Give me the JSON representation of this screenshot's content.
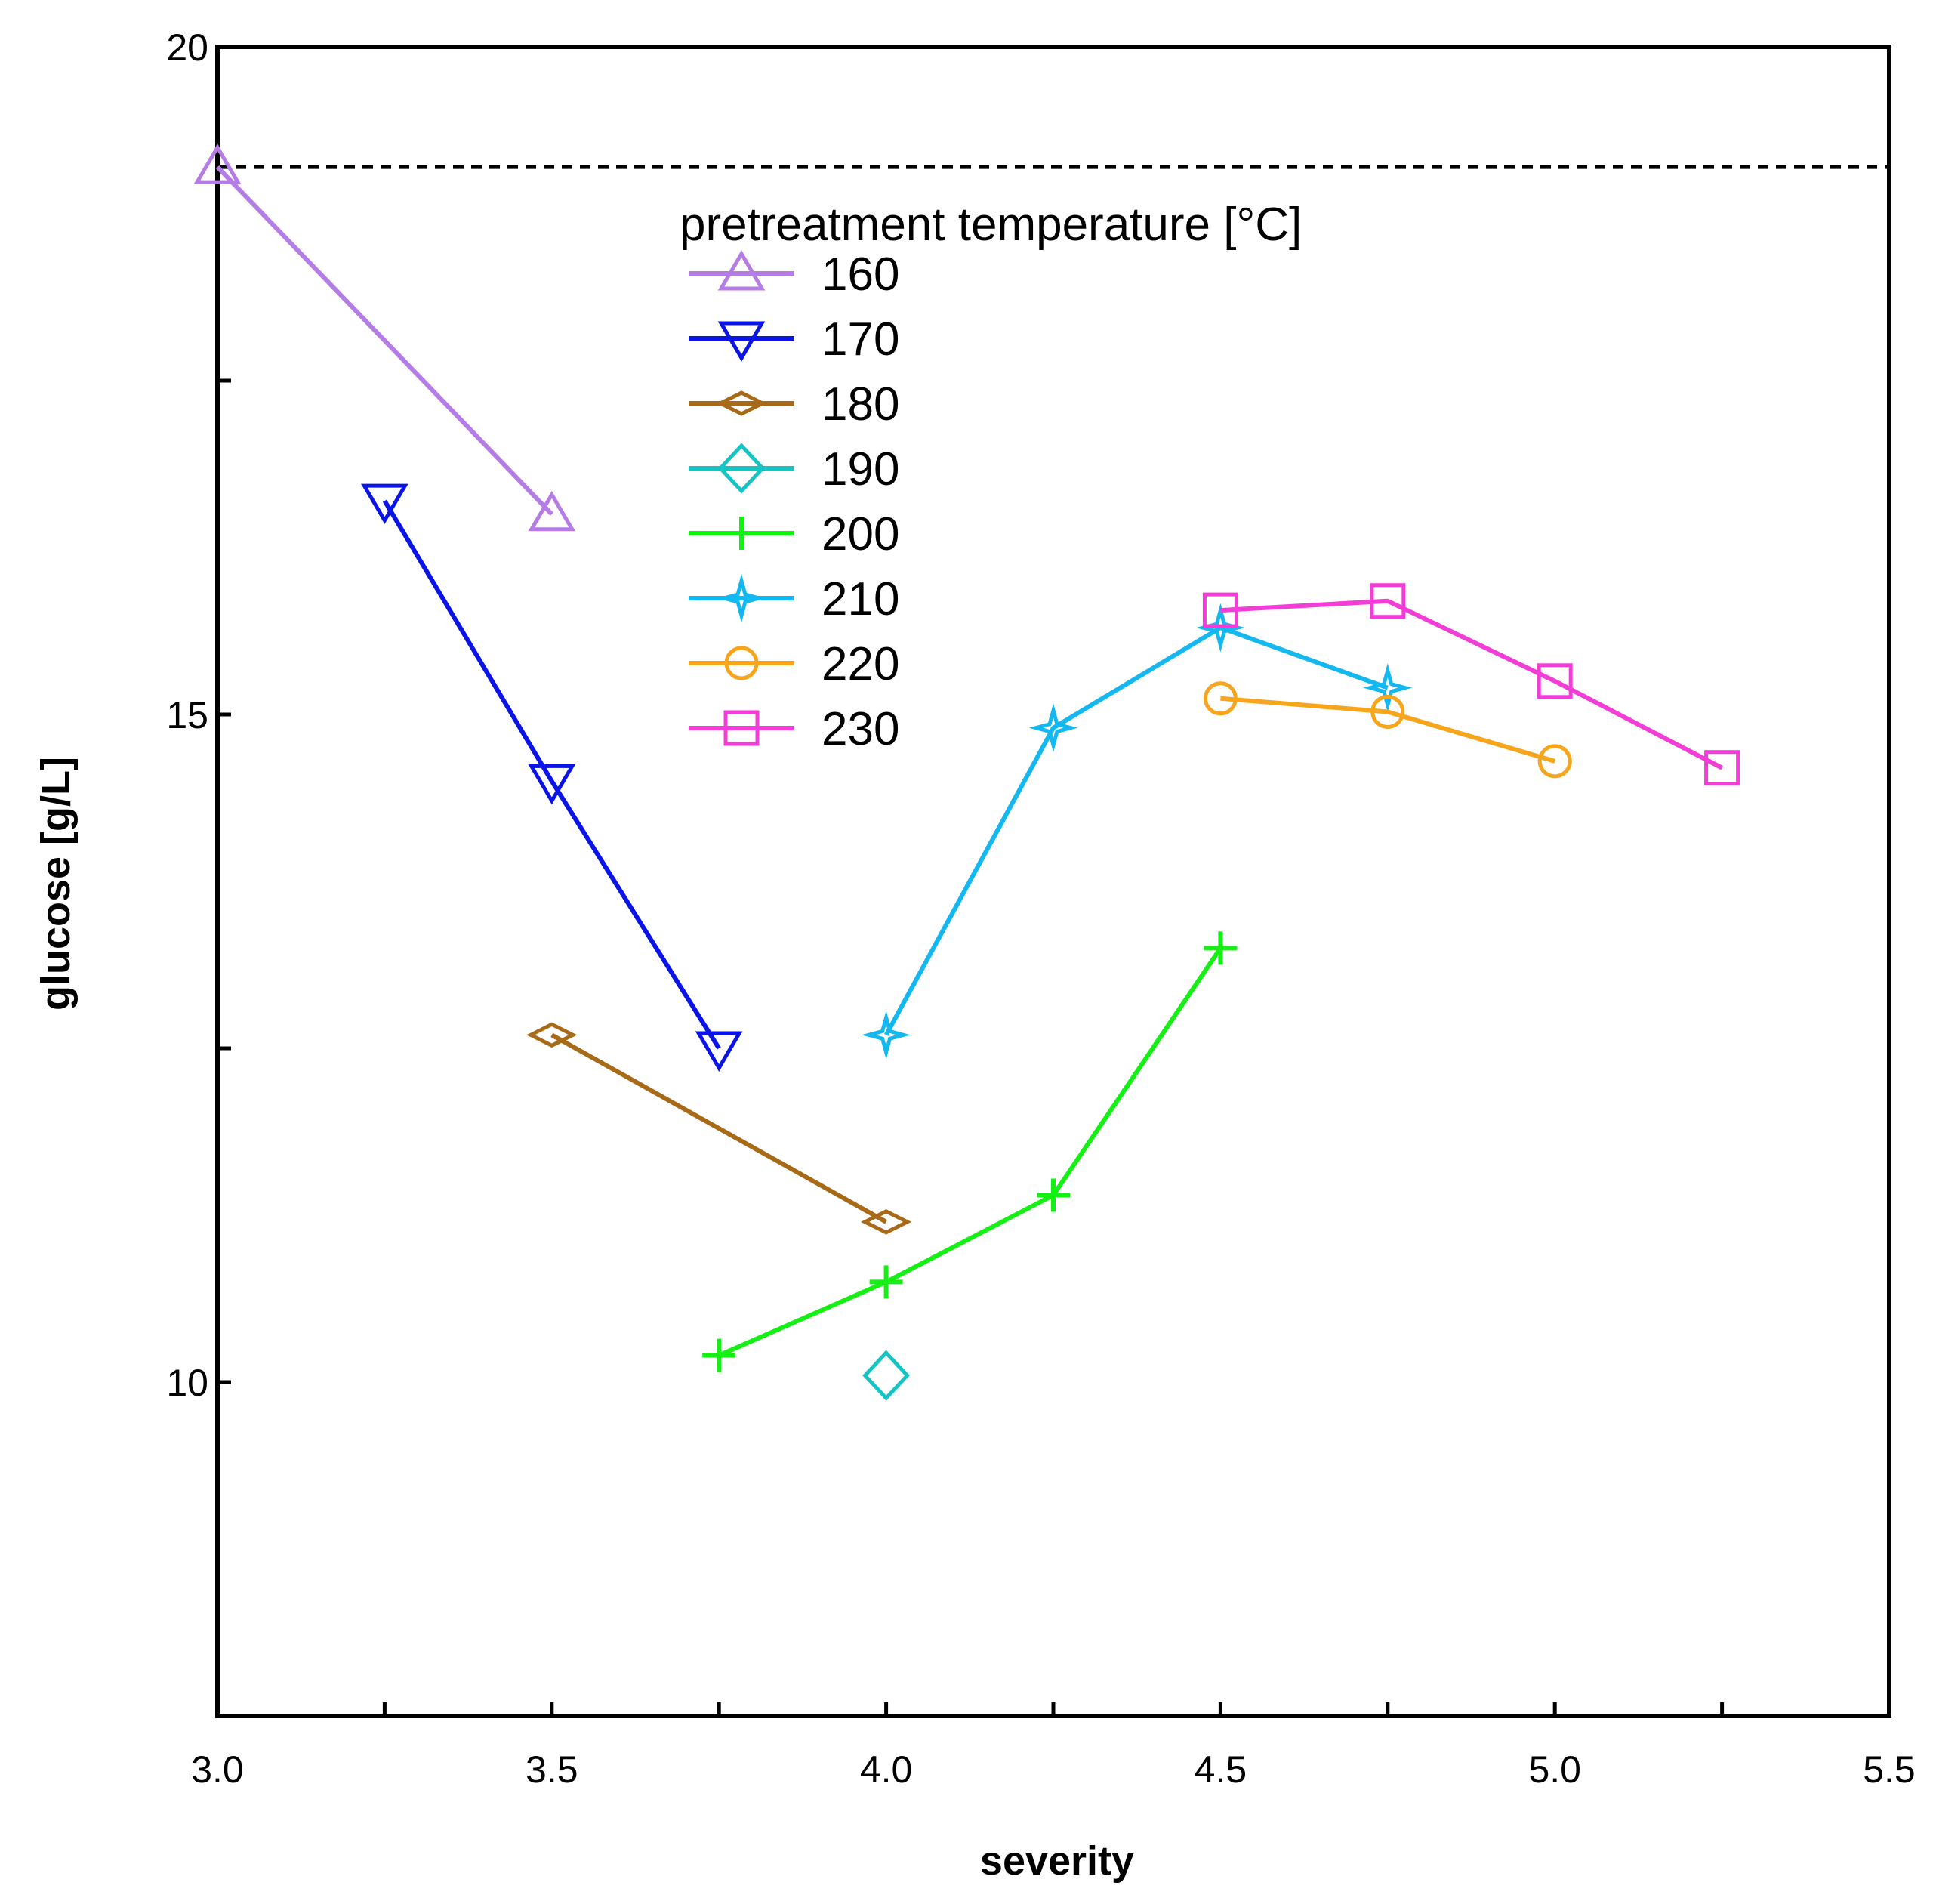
{
  "chart_data": {
    "type": "line",
    "title": "",
    "xlabel": "severity",
    "ylabel": "glucose [g/L]",
    "xlim": [
      3.0,
      5.5
    ],
    "ylim": [
      7.5,
      20
    ],
    "x_ticks": [
      3.0,
      3.25,
      3.5,
      3.75,
      4.0,
      4.25,
      4.5,
      4.75,
      5.0,
      5.25,
      5.5
    ],
    "x_tick_labels": [
      "3.0",
      "",
      "3.5",
      "",
      "4.0",
      "",
      "4.5",
      "",
      "5.0",
      "",
      "5.5"
    ],
    "y_ticks": [
      7.5,
      10,
      12.5,
      15,
      17.5,
      20
    ],
    "y_tick_labels": [
      "",
      "10",
      "",
      "15",
      "",
      "20"
    ],
    "reference_line": {
      "y": 19.1,
      "style": "dashed"
    },
    "grid": false,
    "legend": {
      "title": "pretreatment temperature [°C]",
      "placement": "top-center"
    },
    "series": [
      {
        "name": "160",
        "marker": "triangle-up",
        "color": "#b57ce6",
        "x": [
          3.0,
          3.5
        ],
        "y": [
          19.1,
          16.5
        ]
      },
      {
        "name": "170",
        "marker": "triangle-down",
        "color": "#0a14e6",
        "x": [
          3.25,
          3.5,
          3.75
        ],
        "y": [
          16.6,
          14.5,
          12.5
        ]
      },
      {
        "name": "180",
        "marker": "thin-diamond",
        "color": "#a86a17",
        "x": [
          3.5,
          4.0
        ],
        "y": [
          12.6,
          11.2
        ]
      },
      {
        "name": "190",
        "marker": "diamond",
        "color": "#17c4c4",
        "x": [
          4.0
        ],
        "y": [
          10.05
        ]
      },
      {
        "name": "200",
        "marker": "plus",
        "color": "#14ef14",
        "x": [
          3.75,
          4.0,
          4.25,
          4.5
        ],
        "y": [
          10.2,
          10.75,
          11.4,
          13.25
        ]
      },
      {
        "name": "210",
        "marker": "star",
        "color": "#14b8f0",
        "x": [
          4.0,
          4.25,
          4.5,
          4.75
        ],
        "y": [
          12.6,
          14.9,
          15.65,
          15.2
        ]
      },
      {
        "name": "220",
        "marker": "circle",
        "color": "#f7a51c",
        "x": [
          4.5,
          4.75,
          5.0
        ],
        "y": [
          15.12,
          15.02,
          14.65
        ]
      },
      {
        "name": "230",
        "marker": "square",
        "color": "#f23ed6",
        "x": [
          4.5,
          4.75,
          5.0,
          5.25
        ],
        "y": [
          15.78,
          15.85,
          15.25,
          14.6
        ]
      }
    ]
  }
}
